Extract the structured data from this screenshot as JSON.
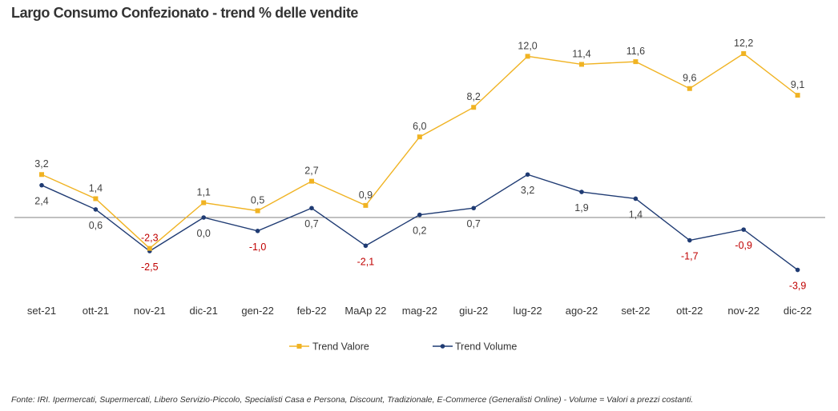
{
  "title": "Largo Consumo Confezionato - trend % delle vendite",
  "footnote": "Fonte: IRI. Ipermercati, Supermercati, Libero Servizio-Piccolo,  Specialisti Casa e Persona, Discount, Tradizionale, E-Commerce (Generalisti Online) -  Volume = Valori a prezzi costanti.",
  "colors": {
    "valore": "#F0B323",
    "volume": "#1F3B73",
    "negative_label": "#C00000",
    "positive_label": "#404040",
    "zero_line": "#808080"
  },
  "chart_data": {
    "type": "line",
    "categories": [
      "set-21",
      "ott-21",
      "nov-21",
      "dic-21",
      "gen-22",
      "feb-22",
      "MaAp 22",
      "mag-22",
      "giu-22",
      "lug-22",
      "ago-22",
      "set-22",
      "ott-22",
      "nov-22",
      "dic-22"
    ],
    "series": [
      {
        "name": "Trend Valore",
        "values": [
          3.2,
          1.4,
          -2.3,
          1.1,
          0.5,
          2.7,
          0.9,
          6.0,
          8.2,
          12.0,
          11.4,
          11.6,
          9.6,
          12.2,
          9.1
        ],
        "labels": [
          "3,2",
          "1,4",
          "-2,3",
          "1,1",
          "0,5",
          "2,7",
          "0,9",
          "6,0",
          "8,2",
          "12,0",
          "11,4",
          "11,6",
          "9,6",
          "12,2",
          "9,1"
        ]
      },
      {
        "name": "Trend Volume",
        "values": [
          2.4,
          0.6,
          -2.5,
          0.0,
          -1.0,
          0.7,
          -2.1,
          0.2,
          0.7,
          3.2,
          1.9,
          1.4,
          -1.7,
          -0.9,
          -3.9
        ],
        "labels": [
          "2,4",
          "0,6",
          "-2,5",
          "0,0",
          "-1,0",
          "0,7",
          "-2,1",
          "0,2",
          "0,7",
          "3,2",
          "1,9",
          "1,4",
          "-1,7",
          "-0,9",
          "-3,9"
        ]
      }
    ],
    "legend": "bottom",
    "grid": false
  }
}
